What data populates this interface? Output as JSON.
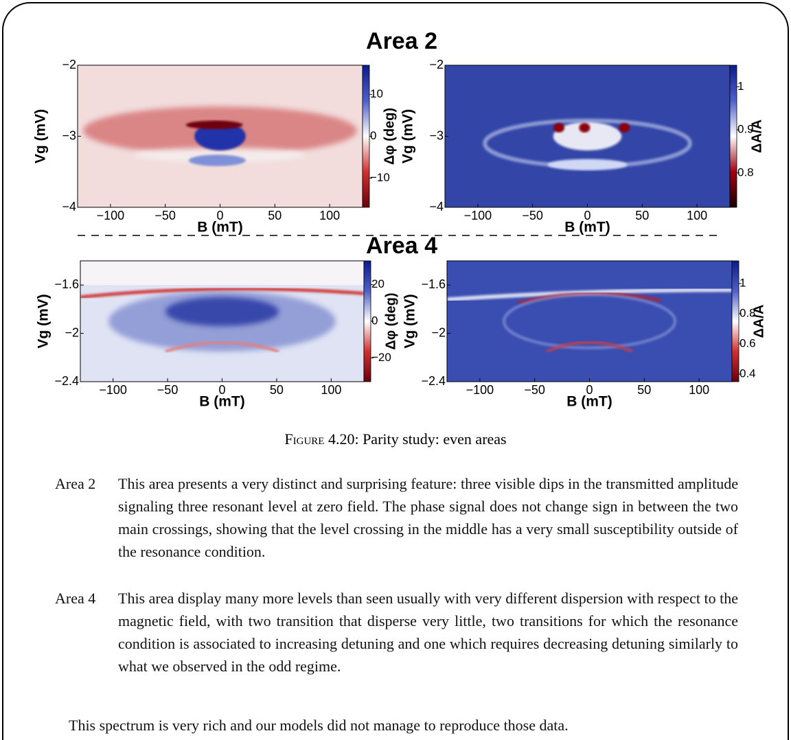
{
  "figure": {
    "area_titles": [
      "Area 2",
      "Area 4"
    ],
    "caption_label": "Figure 4.20:",
    "caption_text": "Parity study: even areas"
  },
  "chart_data": [
    {
      "type": "heatmap",
      "ylabel": "Vg (mV)",
      "xlabel": "B (mT)",
      "clabel": "Δφ (deg)",
      "xlim": [
        -130,
        130
      ],
      "xticks": [
        {
          "value": -100,
          "label": "−100"
        },
        {
          "value": -50,
          "label": "−50"
        },
        0,
        50,
        100
      ],
      "ylim": [
        -4,
        -2
      ],
      "yticks": [
        {
          "value": -4,
          "label": "−4"
        },
        {
          "value": -3,
          "label": "−3"
        },
        {
          "value": -2,
          "label": "−2"
        }
      ],
      "clim": [
        -17,
        17
      ],
      "cticks": [
        {
          "value": -10,
          "label": "−10"
        },
        0,
        10
      ],
      "colormap": [
        "#67000d",
        "#d03030",
        "#ffffff",
        "#5060c8",
        "#0a1a8c"
      ]
    },
    {
      "type": "heatmap",
      "ylabel": "Vg (mV)",
      "xlabel": "B (mT)",
      "clabel": "ΔA/A",
      "xlim": [
        -130,
        130
      ],
      "xticks": [
        {
          "value": -100,
          "label": "−100"
        },
        {
          "value": -50,
          "label": "−50"
        },
        0,
        50,
        100
      ],
      "ylim": [
        -4,
        -2
      ],
      "yticks": [
        {
          "value": -4,
          "label": "−4"
        },
        {
          "value": -3,
          "label": "−3"
        },
        {
          "value": -2,
          "label": "−2"
        }
      ],
      "clim": [
        0.72,
        1.05
      ],
      "cticks": [
        0.8,
        0.9,
        1
      ],
      "colormap": [
        "#1a0000",
        "#a00010",
        "#ffffff",
        "#5060c8",
        "#0a1a8c"
      ]
    },
    {
      "type": "heatmap",
      "ylabel": "Vg (mV)",
      "xlabel": "B (mT)",
      "clabel": "Δφ (deg)",
      "xlim": [
        -130,
        130
      ],
      "xticks": [
        {
          "value": -100,
          "label": "−100"
        },
        {
          "value": -50,
          "label": "−50"
        },
        0,
        50,
        100
      ],
      "ylim": [
        -2.4,
        -1.4
      ],
      "yticks": [
        {
          "value": -2.4,
          "label": "−2.4"
        },
        {
          "value": -2,
          "label": "−2"
        },
        {
          "value": -1.6,
          "label": "−1.6"
        }
      ],
      "clim": [
        -33,
        33
      ],
      "cticks": [
        {
          "value": -20,
          "label": "−20"
        },
        0,
        20
      ],
      "colormap": [
        "#67000d",
        "#d03030",
        "#ffffff",
        "#5060c8",
        "#0a1a8c"
      ]
    },
    {
      "type": "heatmap",
      "ylabel": "Vg (mV)",
      "xlabel": "B (mT)",
      "clabel": "ΔA/A",
      "xlim": [
        -130,
        130
      ],
      "xticks": [
        {
          "value": -100,
          "label": "−100"
        },
        {
          "value": -50,
          "label": "−50"
        },
        0,
        50,
        100
      ],
      "ylim": [
        -2.4,
        -1.4
      ],
      "yticks": [
        {
          "value": -2.4,
          "label": "−2.4"
        },
        {
          "value": -2,
          "label": "−2"
        },
        {
          "value": -1.6,
          "label": "−1.6"
        }
      ],
      "clim": [
        0.35,
        1.15
      ],
      "cticks": [
        0.4,
        0.6,
        0.8,
        1
      ],
      "colormap": [
        "#67000d",
        "#d03030",
        "#ffffff",
        "#5060c8",
        "#0a1a8c"
      ]
    }
  ],
  "descriptions": [
    {
      "term": "Area 2",
      "text": "This area presents a very distinct and surprising feature: three visible dips in the transmitted amplitude signaling three resonant level at zero field. The phase signal does not change sign in between the two main crossings, showing that the level crossing in the middle has a very small susceptibility outside of the resonance condition."
    },
    {
      "term": "Area 4",
      "text": "This area display many more levels than seen usually with very different dispersion with respect to the magnetic field, with two transition that disperse very little, two transitions for which the resonance condition is associated to increasing detuning and one which requires decreasing detuning similarly to what we observed in the odd regime."
    }
  ],
  "closing": "This spectrum is very rich and our models did not manage to reproduce those data."
}
